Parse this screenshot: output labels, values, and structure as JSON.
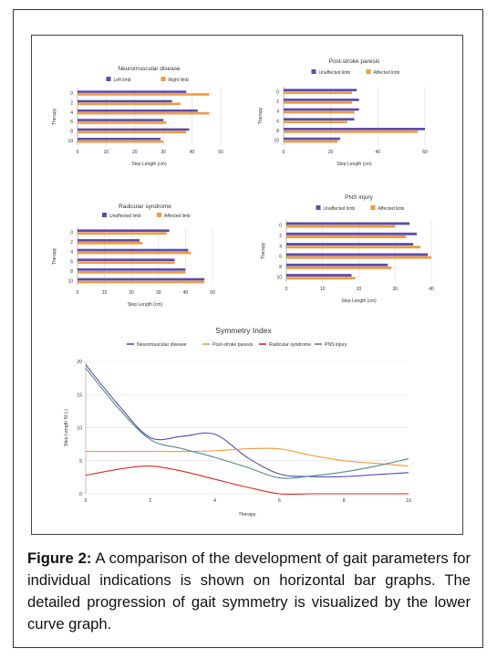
{
  "caption": {
    "label": "Figure 2:",
    "text": "A comparison of the development of gait parameters for individual indications is shown on horizontal bar graphs. The detailed progression of gait symmetry is visualized by the lower curve graph."
  },
  "colors": {
    "purple": "#5b4cad",
    "orange": "#ee9b42",
    "red": "#d42a24",
    "teal": "#4e8d86",
    "grid": "#dddddd"
  },
  "chart_data": [
    {
      "type": "bar",
      "orientation": "horizontal",
      "title": "Neuromuscular disease",
      "xlabel": "Step Length (cm)",
      "ylabel": "Therapy",
      "categories": [
        "0",
        "2",
        "4",
        "6",
        "8",
        "10"
      ],
      "xlim": [
        0,
        50
      ],
      "xticks": [
        0,
        10,
        20,
        30,
        40,
        50
      ],
      "series": [
        {
          "name": "Left limb",
          "values": [
            38,
            33,
            42,
            30,
            39,
            29
          ]
        },
        {
          "name": "Right limb",
          "values": [
            46,
            36,
            46,
            31,
            38,
            30
          ]
        }
      ]
    },
    {
      "type": "bar",
      "orientation": "horizontal",
      "title": "Post-stroke paresis",
      "xlabel": "Step Length (cm)",
      "ylabel": "Therapy",
      "categories": [
        "0",
        "2",
        "4",
        "6",
        "8",
        "10"
      ],
      "xlim": [
        0,
        60
      ],
      "xticks": [
        0,
        20,
        40,
        60
      ],
      "series": [
        {
          "name": "Unaffected limb",
          "values": [
            31,
            32,
            32,
            30,
            60,
            24
          ]
        },
        {
          "name": "Affected limb",
          "values": [
            29,
            29,
            30,
            27,
            57,
            23
          ]
        }
      ]
    },
    {
      "type": "bar",
      "orientation": "horizontal",
      "title": "Radicular syndrome",
      "xlabel": "Step Length (cm)",
      "ylabel": "Therapy",
      "categories": [
        "0",
        "2",
        "4",
        "6",
        "8",
        "10"
      ],
      "xlim": [
        0,
        50
      ],
      "xticks": [
        0,
        10,
        20,
        30,
        40,
        50
      ],
      "series": [
        {
          "name": "Unaffected limb",
          "values": [
            34,
            23,
            41,
            36,
            40,
            47
          ]
        },
        {
          "name": "Affected limb",
          "values": [
            33,
            24,
            42,
            36,
            40,
            47
          ]
        }
      ]
    },
    {
      "type": "bar",
      "orientation": "horizontal",
      "title": "PNS injury",
      "xlabel": "Step Length (cm)",
      "ylabel": "Therapy",
      "categories": [
        "0",
        "2",
        "4",
        "6",
        "8",
        "10"
      ],
      "xlim": [
        0,
        40
      ],
      "xticks": [
        0,
        10,
        20,
        30,
        40
      ],
      "series": [
        {
          "name": "Unaffected limb",
          "values": [
            34,
            36,
            35,
            39,
            28,
            18
          ]
        },
        {
          "name": "Affected limb",
          "values": [
            30,
            33,
            37,
            40,
            29,
            19
          ]
        }
      ]
    },
    {
      "type": "line",
      "title": "Symmetry Index",
      "xlabel": "Therapy",
      "ylabel": "Step Length SI (-)",
      "xlim": [
        0,
        10
      ],
      "ylim": [
        0,
        20
      ],
      "xticks": [
        0,
        2,
        4,
        6,
        8,
        10
      ],
      "yticks": [
        0,
        5,
        10,
        15,
        20
      ],
      "x": [
        0,
        1,
        2,
        3,
        4,
        5,
        6,
        7,
        8,
        9,
        10
      ],
      "series": [
        {
          "name": "Neuromuscular disease",
          "values": [
            19.5,
            13.5,
            8.5,
            8.7,
            9.0,
            5.5,
            3.0,
            2.6,
            2.6,
            2.9,
            3.2
          ]
        },
        {
          "name": "Post-stroke paresis",
          "values": [
            6.4,
            6.4,
            6.4,
            6.4,
            6.5,
            6.8,
            6.8,
            5.8,
            5.0,
            4.6,
            4.2
          ]
        },
        {
          "name": "Radicular syndrome",
          "values": [
            2.8,
            3.7,
            4.2,
            3.4,
            2.2,
            1.0,
            0.0,
            0.0,
            0.0,
            0.0,
            0.0
          ]
        },
        {
          "name": "PNS injury",
          "values": [
            19.0,
            13.0,
            8.2,
            6.8,
            5.5,
            4.0,
            2.4,
            2.7,
            3.3,
            4.2,
            5.3
          ]
        }
      ]
    }
  ]
}
